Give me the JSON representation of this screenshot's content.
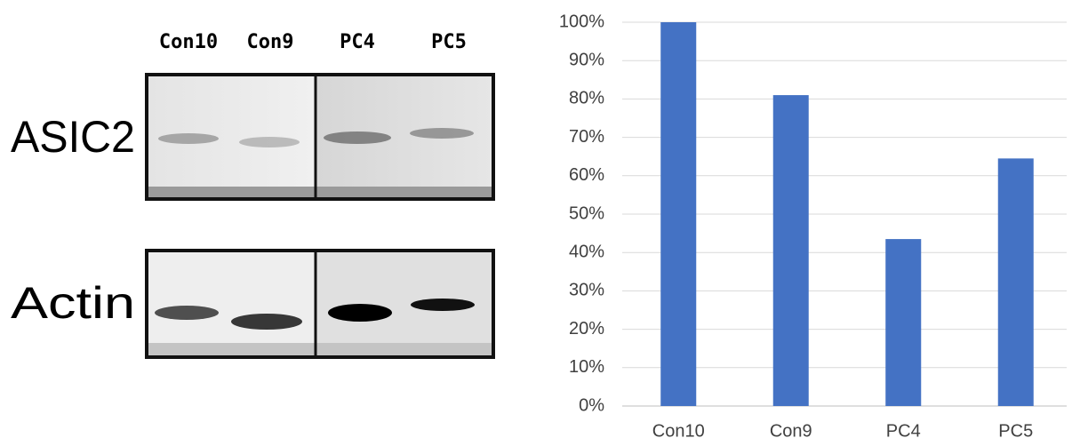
{
  "blot": {
    "lanes": [
      "Con10",
      "Con9",
      "PC4",
      "PC5"
    ],
    "rows": [
      "ASIC2",
      "Actin"
    ]
  },
  "chart_data": {
    "type": "bar",
    "categories": [
      "Con10",
      "Con9",
      "PC4",
      "PC5"
    ],
    "values": [
      100,
      81,
      43.5,
      64.5
    ],
    "color": "#4472c4",
    "ylim": [
      0,
      100
    ],
    "yticks": [
      {
        "value": 0,
        "label": "0%"
      },
      {
        "value": 10,
        "label": "10%"
      },
      {
        "value": 20,
        "label": "20%"
      },
      {
        "value": 30,
        "label": "30%"
      },
      {
        "value": 40,
        "label": "40%"
      },
      {
        "value": 50,
        "label": "50%"
      },
      {
        "value": 60,
        "label": "60%"
      },
      {
        "value": 70,
        "label": "70%"
      },
      {
        "value": 80,
        "label": "80%"
      },
      {
        "value": 90,
        "label": "90%"
      },
      {
        "value": 100,
        "label": "100%"
      }
    ],
    "grid": true
  }
}
